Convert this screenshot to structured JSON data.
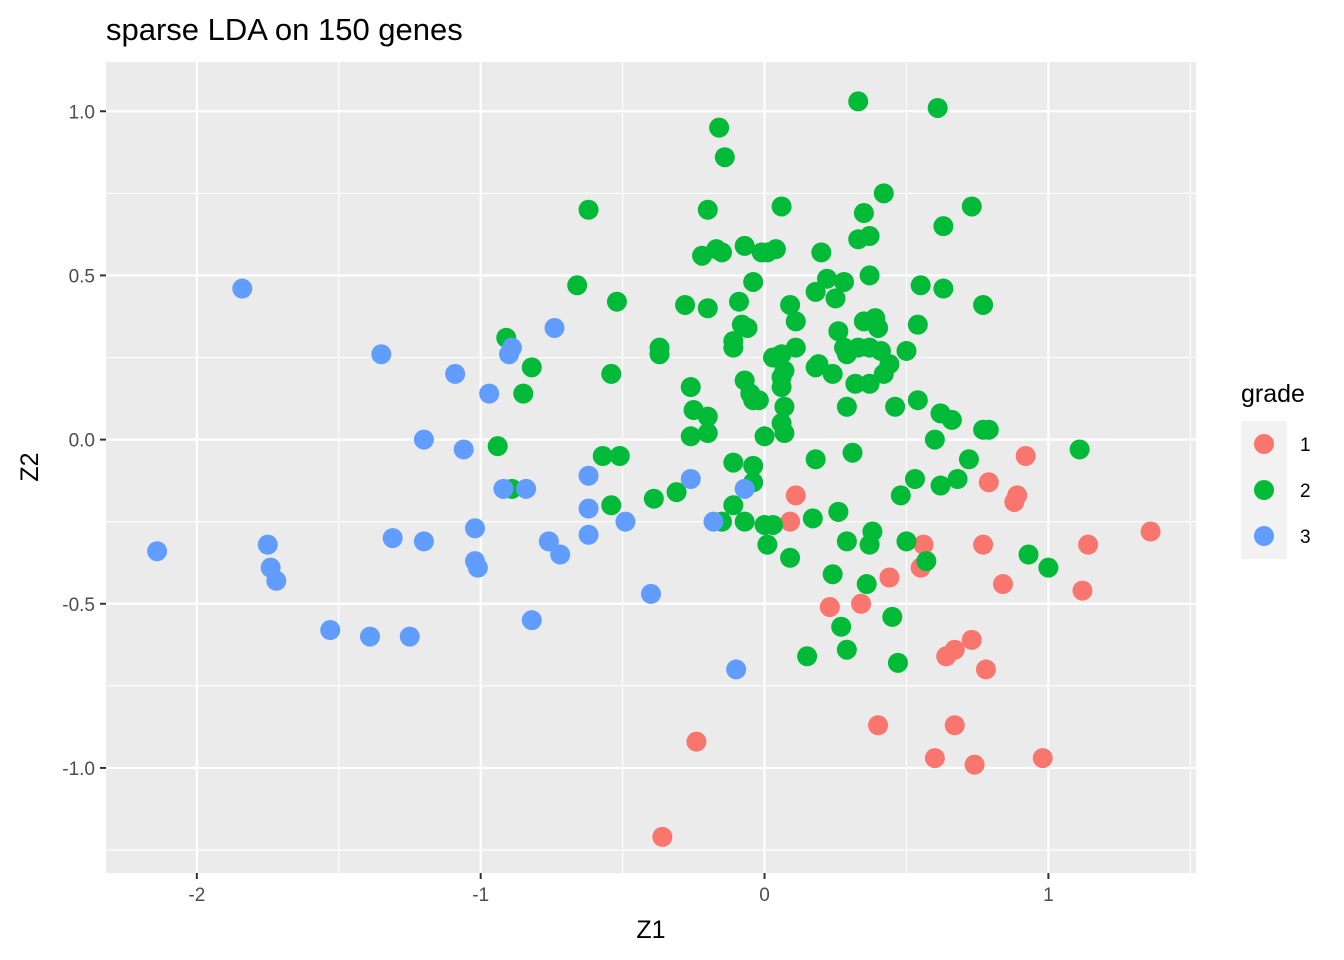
{
  "chart_data": {
    "type": "scatter",
    "title": "sparse LDA on 150 genes",
    "xlabel": "Z1",
    "ylabel": "Z2",
    "xlim": [
      -2.32,
      1.52
    ],
    "ylim": [
      -1.32,
      1.15
    ],
    "x_ticks": [
      -2,
      -1,
      0,
      1
    ],
    "x_tick_labels": [
      "-2",
      "-1",
      "0",
      "1"
    ],
    "y_ticks": [
      1.0,
      0.5,
      0.0,
      -0.5,
      -1.0
    ],
    "y_tick_labels": [
      "1.0",
      "0.5",
      "0.0",
      "-0.5",
      "-1.0"
    ],
    "grid": true,
    "legend": {
      "title": "grade",
      "position": "right"
    },
    "series": [
      {
        "name": "1",
        "color": "#F8766D",
        "points": [
          [
            0.11,
            -0.17
          ],
          [
            0.09,
            -0.25
          ],
          [
            0.26,
            -0.22
          ],
          [
            0.56,
            -0.32
          ],
          [
            0.55,
            -0.39
          ],
          [
            0.44,
            -0.42
          ],
          [
            0.34,
            -0.5
          ],
          [
            0.23,
            -0.51
          ],
          [
            0.77,
            -0.32
          ],
          [
            0.79,
            -0.13
          ],
          [
            0.88,
            -0.19
          ],
          [
            0.89,
            -0.17
          ],
          [
            0.92,
            -0.05
          ],
          [
            0.84,
            -0.44
          ],
          [
            1.14,
            -0.32
          ],
          [
            1.12,
            -0.46
          ],
          [
            1.36,
            -0.28
          ],
          [
            0.73,
            -0.61
          ],
          [
            0.67,
            -0.64
          ],
          [
            0.64,
            -0.66
          ],
          [
            0.78,
            -0.7
          ],
          [
            0.4,
            -0.87
          ],
          [
            0.67,
            -0.87
          ],
          [
            0.6,
            -0.97
          ],
          [
            0.74,
            -0.99
          ],
          [
            0.98,
            -0.97
          ],
          [
            -0.24,
            -0.92
          ],
          [
            -0.36,
            -1.21
          ]
        ]
      },
      {
        "name": "2",
        "color": "#00BA38",
        "points": [
          [
            0.33,
            1.03
          ],
          [
            0.61,
            1.01
          ],
          [
            -0.16,
            0.95
          ],
          [
            -0.14,
            0.86
          ],
          [
            0.42,
            0.75
          ],
          [
            0.06,
            0.71
          ],
          [
            0.73,
            0.71
          ],
          [
            -0.2,
            0.7
          ],
          [
            -0.62,
            0.7
          ],
          [
            0.35,
            0.69
          ],
          [
            0.63,
            0.65
          ],
          [
            0.37,
            0.62
          ],
          [
            0.33,
            0.61
          ],
          [
            -0.07,
            0.59
          ],
          [
            -0.17,
            0.58
          ],
          [
            0.04,
            0.58
          ],
          [
            -0.15,
            0.57
          ],
          [
            -0.01,
            0.57
          ],
          [
            0.01,
            0.57
          ],
          [
            0.2,
            0.57
          ],
          [
            -0.22,
            0.56
          ],
          [
            0.22,
            0.49
          ],
          [
            0.37,
            0.5
          ],
          [
            -0.04,
            0.48
          ],
          [
            0.28,
            0.48
          ],
          [
            0.55,
            0.47
          ],
          [
            0.63,
            0.46
          ],
          [
            0.18,
            0.45
          ],
          [
            -0.66,
            0.47
          ],
          [
            0.25,
            0.43
          ],
          [
            -0.52,
            0.42
          ],
          [
            -0.09,
            0.42
          ],
          [
            -0.28,
            0.41
          ],
          [
            -0.2,
            0.4
          ],
          [
            0.09,
            0.41
          ],
          [
            0.77,
            0.41
          ],
          [
            0.39,
            0.37
          ],
          [
            0.11,
            0.36
          ],
          [
            0.35,
            0.36
          ],
          [
            0.54,
            0.35
          ],
          [
            -0.08,
            0.35
          ],
          [
            -0.06,
            0.34
          ],
          [
            0.4,
            0.34
          ],
          [
            0.26,
            0.33
          ],
          [
            -0.91,
            0.31
          ],
          [
            -0.11,
            0.3
          ],
          [
            -0.11,
            0.28
          ],
          [
            0.28,
            0.28
          ],
          [
            0.33,
            0.28
          ],
          [
            0.37,
            0.28
          ],
          [
            0.11,
            0.28
          ],
          [
            0.41,
            0.27
          ],
          [
            0.5,
            0.27
          ],
          [
            0.29,
            0.26
          ],
          [
            0.03,
            0.25
          ],
          [
            0.06,
            0.26
          ],
          [
            -0.37,
            0.28
          ],
          [
            -0.37,
            0.26
          ],
          [
            0.44,
            0.23
          ],
          [
            0.19,
            0.23
          ],
          [
            0.18,
            0.22
          ],
          [
            -0.82,
            0.22
          ],
          [
            0.24,
            0.2
          ],
          [
            0.07,
            0.21
          ],
          [
            0.42,
            0.2
          ],
          [
            -0.54,
            0.2
          ],
          [
            0.06,
            0.19
          ],
          [
            0.37,
            0.17
          ],
          [
            0.32,
            0.17
          ],
          [
            0.06,
            0.16
          ],
          [
            -0.26,
            0.16
          ],
          [
            -0.07,
            0.18
          ],
          [
            -0.05,
            0.14
          ],
          [
            -0.85,
            0.14
          ],
          [
            -0.04,
            0.12
          ],
          [
            -0.02,
            0.12
          ],
          [
            0.54,
            0.12
          ],
          [
            0.07,
            0.1
          ],
          [
            0.29,
            0.1
          ],
          [
            0.46,
            0.1
          ],
          [
            -0.25,
            0.09
          ],
          [
            0.62,
            0.08
          ],
          [
            0.66,
            0.06
          ],
          [
            -0.2,
            0.07
          ],
          [
            0.06,
            0.05
          ],
          [
            0.77,
            0.03
          ],
          [
            0.79,
            0.03
          ],
          [
            0.07,
            0.02
          ],
          [
            -0.26,
            0.01
          ],
          [
            -0.2,
            0.02
          ],
          [
            0.0,
            0.01
          ],
          [
            0.6,
            0.0
          ],
          [
            1.11,
            -0.03
          ],
          [
            -0.94,
            -0.02
          ],
          [
            0.31,
            -0.04
          ],
          [
            0.72,
            -0.06
          ],
          [
            -0.57,
            -0.05
          ],
          [
            0.18,
            -0.06
          ],
          [
            -0.51,
            -0.05
          ],
          [
            -0.11,
            -0.07
          ],
          [
            -0.04,
            -0.08
          ],
          [
            -0.04,
            -0.13
          ],
          [
            0.68,
            -0.12
          ],
          [
            0.53,
            -0.12
          ],
          [
            0.62,
            -0.14
          ],
          [
            -0.89,
            -0.15
          ],
          [
            -0.31,
            -0.16
          ],
          [
            0.48,
            -0.17
          ],
          [
            -0.39,
            -0.18
          ],
          [
            -0.54,
            -0.2
          ],
          [
            -0.11,
            -0.2
          ],
          [
            0.26,
            -0.22
          ],
          [
            0.17,
            -0.24
          ],
          [
            -0.15,
            -0.25
          ],
          [
            -0.07,
            -0.25
          ],
          [
            0.0,
            -0.26
          ],
          [
            0.03,
            -0.26
          ],
          [
            0.38,
            -0.28
          ],
          [
            0.5,
            -0.31
          ],
          [
            0.29,
            -0.31
          ],
          [
            0.37,
            -0.32
          ],
          [
            0.01,
            -0.32
          ],
          [
            0.09,
            -0.36
          ],
          [
            0.57,
            -0.37
          ],
          [
            0.93,
            -0.35
          ],
          [
            1.0,
            -0.39
          ],
          [
            0.24,
            -0.41
          ],
          [
            0.36,
            -0.44
          ],
          [
            0.45,
            -0.54
          ],
          [
            0.27,
            -0.57
          ],
          [
            0.29,
            -0.64
          ],
          [
            0.15,
            -0.66
          ],
          [
            0.47,
            -0.68
          ]
        ]
      },
      {
        "name": "3",
        "color": "#619CFF",
        "points": [
          [
            -1.84,
            0.46
          ],
          [
            -1.35,
            0.26
          ],
          [
            -0.74,
            0.34
          ],
          [
            -0.89,
            0.28
          ],
          [
            -0.9,
            0.26
          ],
          [
            -1.09,
            0.2
          ],
          [
            -0.97,
            0.14
          ],
          [
            -1.2,
            0.0
          ],
          [
            -1.06,
            -0.03
          ],
          [
            -0.62,
            -0.11
          ],
          [
            -0.26,
            -0.12
          ],
          [
            -0.92,
            -0.15
          ],
          [
            -0.84,
            -0.15
          ],
          [
            -0.07,
            -0.15
          ],
          [
            -0.62,
            -0.21
          ],
          [
            -0.49,
            -0.25
          ],
          [
            -0.18,
            -0.25
          ],
          [
            -1.02,
            -0.27
          ],
          [
            -0.62,
            -0.29
          ],
          [
            -1.31,
            -0.3
          ],
          [
            -1.2,
            -0.31
          ],
          [
            -0.76,
            -0.31
          ],
          [
            -1.75,
            -0.32
          ],
          [
            -2.14,
            -0.34
          ],
          [
            -0.72,
            -0.35
          ],
          [
            -1.02,
            -0.37
          ],
          [
            -1.01,
            -0.39
          ],
          [
            -1.74,
            -0.39
          ],
          [
            -1.72,
            -0.43
          ],
          [
            -0.4,
            -0.47
          ],
          [
            -0.82,
            -0.55
          ],
          [
            -1.53,
            -0.58
          ],
          [
            -1.39,
            -0.6
          ],
          [
            -1.25,
            -0.6
          ],
          [
            -0.1,
            -0.7
          ]
        ]
      }
    ]
  }
}
